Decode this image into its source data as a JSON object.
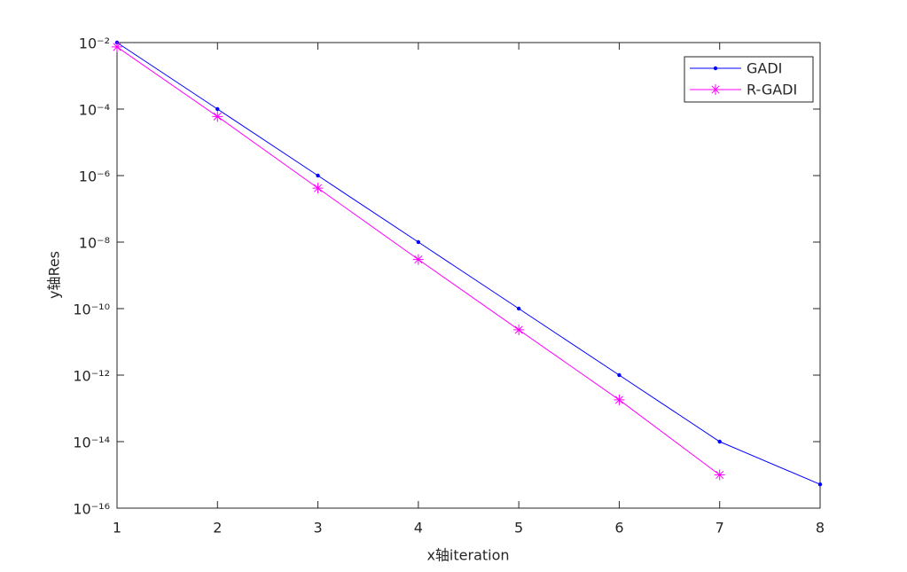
{
  "chart_data": {
    "type": "line",
    "x_label": "x轴iteration",
    "y_label": "y轴Res",
    "x": [
      1,
      2,
      3,
      4,
      5,
      6,
      7,
      8
    ],
    "series": [
      {
        "name": "GADI",
        "color": "#0000ff",
        "marker": "dot",
        "values": [
          0.01,
          0.0001,
          1e-06,
          1e-08,
          1e-10,
          1e-12,
          1e-14,
          5.2e-16
        ]
      },
      {
        "name": "R-GADI",
        "color": "#ff00ff",
        "marker": "asterisk",
        "values": [
          0.0074,
          6e-05,
          4.2e-07,
          3e-09,
          2.3e-11,
          1.8e-13,
          1e-15,
          null
        ]
      }
    ],
    "xlim": [
      1,
      8
    ],
    "xticks": [
      1,
      2,
      3,
      4,
      5,
      6,
      7,
      8
    ],
    "ylim": [
      1e-16,
      0.01
    ],
    "log_y": true,
    "yticks": [
      {
        "value": 1e-16,
        "label": "10⁻¹⁶"
      },
      {
        "value": 1e-14,
        "label": "10⁻¹⁴"
      },
      {
        "value": 1e-12,
        "label": "10⁻¹²"
      },
      {
        "value": 1e-10,
        "label": "10⁻¹⁰"
      },
      {
        "value": 1e-08,
        "label": "10⁻⁸"
      },
      {
        "value": 1e-06,
        "label": "10⁻⁶"
      },
      {
        "value": 0.0001,
        "label": "10⁻⁴"
      },
      {
        "value": 0.01,
        "label": "10⁻²"
      }
    ],
    "grid": false,
    "legend": "upper right"
  }
}
